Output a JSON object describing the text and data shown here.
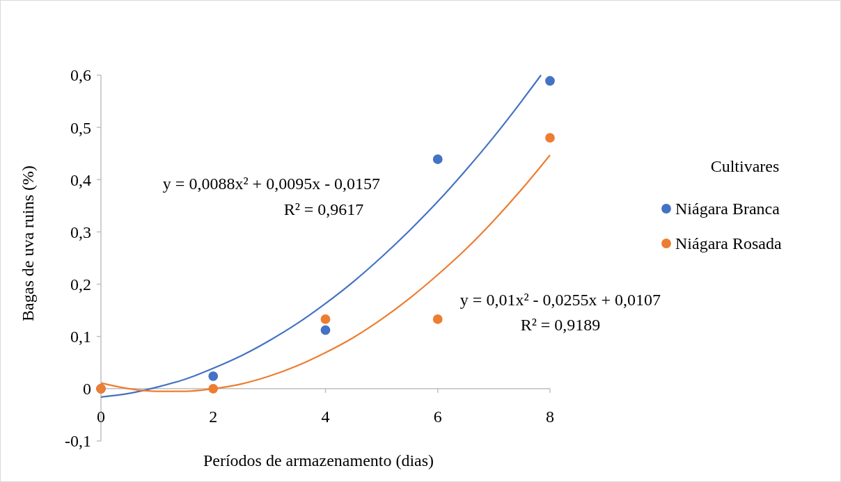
{
  "chart_data": {
    "type": "scatter",
    "xlabel": "Períodos de armazenamento (dias)",
    "ylabel": "Bagas de uva ruins (%)",
    "legend_title": "Cultivares",
    "legend": "right",
    "marker": "circle",
    "grid": false,
    "xlim": [
      0,
      8
    ],
    "xticks": [
      0,
      2,
      4,
      6,
      8
    ],
    "ylim": [
      -0.1,
      0.6
    ],
    "yticks": [
      {
        "value": -0.1,
        "label": "-0,1"
      },
      {
        "value": 0,
        "label": "0"
      },
      {
        "value": 0.1,
        "label": "0,1"
      },
      {
        "value": 0.2,
        "label": "0,2"
      },
      {
        "value": 0.3,
        "label": "0,3"
      },
      {
        "value": 0.4,
        "label": "0,4"
      },
      {
        "value": 0.5,
        "label": "0,5"
      },
      {
        "value": 0.6,
        "label": "0,6"
      }
    ],
    "series": [
      {
        "name": "Niágara Branca",
        "color": "#4472c4",
        "x": [
          0,
          2,
          4,
          6,
          8
        ],
        "values": [
          0,
          0.024,
          0.112,
          0.439,
          0.589
        ]
      },
      {
        "name": "Niágara Rosada",
        "color": "#ed7d31",
        "x": [
          0,
          2,
          4,
          6,
          8
        ],
        "values": [
          0,
          0,
          0.133,
          0.133,
          0.48
        ]
      },
      {
        "type": "line",
        "marker": "none",
        "color": "#4472c4",
        "x": [
          0,
          0.5,
          1,
          1.5,
          2,
          2.5,
          3,
          3.5,
          4,
          4.5,
          5,
          5.5,
          6,
          6.5,
          7,
          7.5,
          7.84
        ],
        "values": [
          -0.016,
          -0.009,
          0.003,
          0.018,
          0.039,
          0.063,
          0.092,
          0.125,
          0.163,
          0.205,
          0.252,
          0.303,
          0.358,
          0.418,
          0.482,
          0.551,
          0.6
        ]
      },
      {
        "type": "line",
        "marker": "none",
        "color": "#ed7d31",
        "x": [
          0,
          0.5,
          1,
          1.5,
          2,
          2.5,
          3,
          3.5,
          4,
          4.5,
          5,
          5.5,
          6,
          6.5,
          7,
          7.5,
          8
        ],
        "values": [
          0.011,
          0,
          -0.005,
          -0.005,
          0,
          0.009,
          0.024,
          0.044,
          0.069,
          0.098,
          0.133,
          0.173,
          0.218,
          0.267,
          0.322,
          0.382,
          0.447
        ]
      }
    ],
    "annotations": [
      "y = 0,0088x² + 0,0095x - 0,0157",
      "R² = 0,9617",
      "y = 0,01x² - 0,0255x + 0,0107",
      "R² = 0,9189"
    ]
  }
}
